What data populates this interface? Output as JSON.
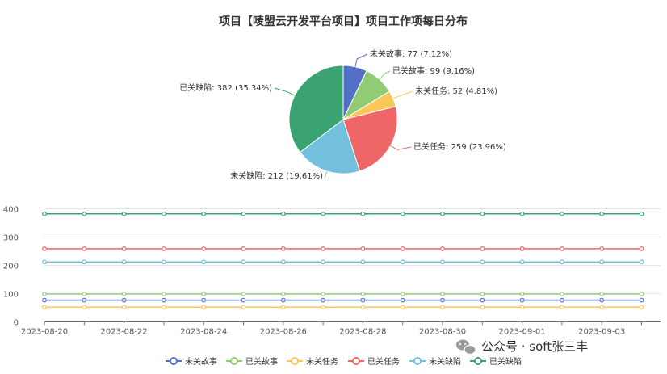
{
  "chart_data": [
    {
      "type": "pie",
      "title": "项目【唛盟云开发平台项目】项目工作项每日分布",
      "slices": [
        {
          "name": "未关故事",
          "value": 77,
          "percent": "7.12%",
          "color": "#5470c6",
          "label": "未关故事: 77 (7.12%)"
        },
        {
          "name": "已关故事",
          "value": 99,
          "percent": "9.16%",
          "color": "#91cc75",
          "label": "已关故事: 99 (9.16%)"
        },
        {
          "name": "未关任务",
          "value": 52,
          "percent": "4.81%",
          "color": "#fac858",
          "label": "未关任务: 52 (4.81%)"
        },
        {
          "name": "已关任务",
          "value": 259,
          "percent": "23.96%",
          "color": "#ee6666",
          "label": "已关任务: 259 (23.96%)"
        },
        {
          "name": "未关缺陷",
          "value": 212,
          "percent": "19.61%",
          "color": "#73c0de",
          "label": "未关缺陷: 212 (19.61%)"
        },
        {
          "name": "已关缺陷",
          "value": 382,
          "percent": "35.34%",
          "color": "#3ba272",
          "label": "已关缺陷: 382 (35.34%)"
        }
      ]
    },
    {
      "type": "line",
      "x": [
        "2023-08-20",
        "2023-08-21",
        "2023-08-22",
        "2023-08-23",
        "2023-08-24",
        "2023-08-25",
        "2023-08-26",
        "2023-08-27",
        "2023-08-28",
        "2023-08-29",
        "2023-08-30",
        "2023-08-31",
        "2023-09-01",
        "2023-09-02",
        "2023-09-03",
        "2023-09-04"
      ],
      "x_tick_labels": [
        "2023-08-20",
        "2023-08-22",
        "2023-08-24",
        "2023-08-26",
        "2023-08-28",
        "2023-08-30",
        "2023-09-01",
        "2023-09-03"
      ],
      "ylim": [
        0,
        400
      ],
      "y_ticks": [
        0,
        100,
        200,
        300,
        400
      ],
      "grid": true,
      "legend_position": "bottom",
      "series": [
        {
          "name": "未关故事",
          "color": "#5470c6",
          "values": [
            77,
            77,
            77,
            77,
            77,
            77,
            77,
            77,
            77,
            77,
            77,
            77,
            77,
            77,
            77,
            77
          ]
        },
        {
          "name": "已关故事",
          "color": "#91cc75",
          "values": [
            99,
            99,
            99,
            99,
            99,
            99,
            99,
            99,
            99,
            99,
            99,
            99,
            99,
            99,
            99,
            99
          ]
        },
        {
          "name": "未关任务",
          "color": "#fac858",
          "values": [
            52,
            52,
            52,
            52,
            52,
            52,
            52,
            52,
            52,
            52,
            52,
            52,
            52,
            52,
            52,
            52
          ]
        },
        {
          "name": "已关任务",
          "color": "#ee6666",
          "values": [
            259,
            259,
            259,
            259,
            259,
            259,
            259,
            259,
            259,
            259,
            259,
            259,
            259,
            259,
            259,
            259
          ]
        },
        {
          "name": "未关缺陷",
          "color": "#73c0de",
          "values": [
            212,
            212,
            212,
            212,
            212,
            212,
            212,
            212,
            212,
            212,
            212,
            212,
            212,
            212,
            212,
            212
          ]
        },
        {
          "name": "已关缺陷",
          "color": "#3ba272",
          "values": [
            382,
            382,
            382,
            382,
            382,
            382,
            382,
            382,
            382,
            382,
            382,
            382,
            382,
            382,
            382,
            382
          ]
        }
      ]
    }
  ],
  "watermark": {
    "text": "公众号 · soft张三丰",
    "icon": "wechat-icon"
  }
}
